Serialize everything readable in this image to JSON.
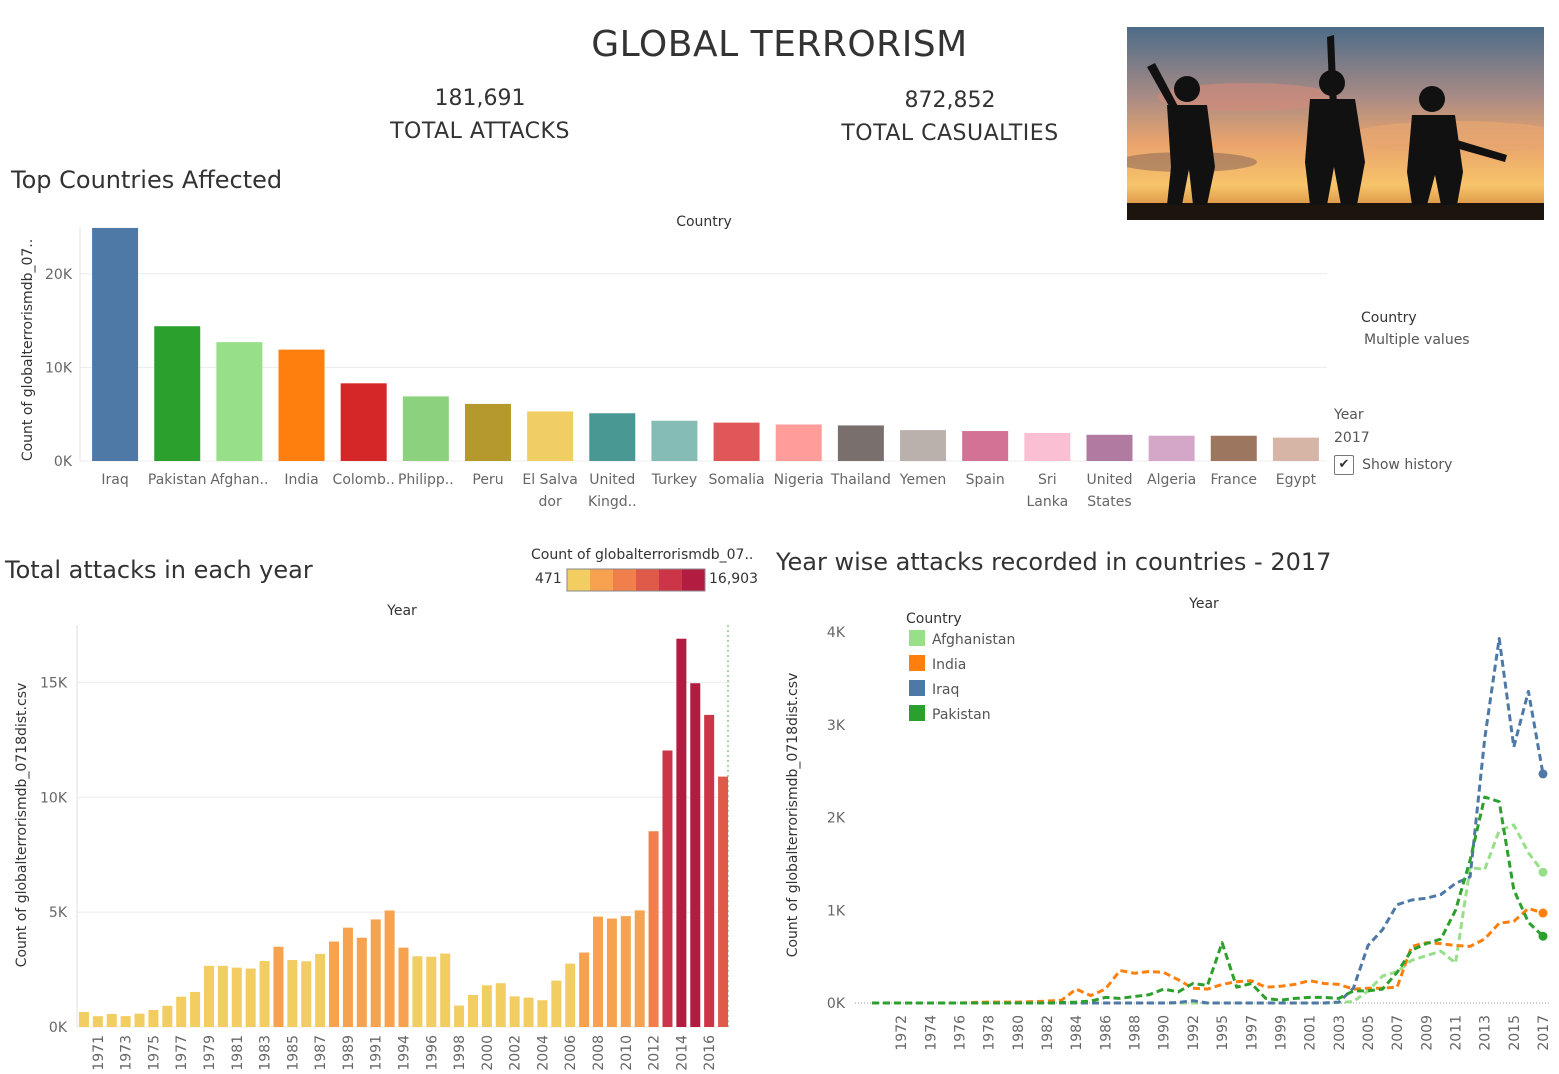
{
  "title": "GLOBAL TERRORISM",
  "kpis": {
    "attacks_value": "181,691",
    "attacks_label": "TOTAL ATTACKS",
    "casualties_value": "872,852",
    "casualties_label": "TOTAL CASUALTIES"
  },
  "filters": {
    "country_label": "Country",
    "country_value": "Multiple values",
    "year_label": "Year",
    "year_value": "2017",
    "show_history_label": "Show history",
    "show_history_checked": "✔"
  },
  "sections": {
    "top_countries": "Top Countries Affected",
    "total_attacks": "Total attacks in each year",
    "year_wise": "Year wise attacks recorded in countries - 2017"
  },
  "color_legend": {
    "title": "Count of globalterrorismdb_07..",
    "min": "471",
    "max": "16,903",
    "colors": [
      "#f2cd61",
      "#f7a24e",
      "#f07f4c",
      "#e05a4a",
      "#cc3547",
      "#b31c41"
    ]
  },
  "chart_data": [
    {
      "type": "bar",
      "title": "",
      "header": "Country",
      "ylabel": "Count of globalterrorismdb_07..",
      "ylim": [
        0,
        25000
      ],
      "yticks": [
        0,
        10000,
        20000
      ],
      "ytick_labels": [
        "0K",
        "10K",
        "20K"
      ],
      "grid": true,
      "categories": [
        {
          "label": [
            "Iraq"
          ],
          "value": 24900,
          "color": "#4e79a7"
        },
        {
          "label": [
            "Pakistan"
          ],
          "value": 14400,
          "color": "#2ca02c"
        },
        {
          "label": [
            "Afghan.."
          ],
          "value": 12700,
          "color": "#98df8a"
        },
        {
          "label": [
            "India"
          ],
          "value": 11900,
          "color": "#ff7f0e"
        },
        {
          "label": [
            "Colomb.."
          ],
          "value": 8300,
          "color": "#d62728"
        },
        {
          "label": [
            "Philipp.."
          ],
          "value": 6900,
          "color": "#8cd17d"
        },
        {
          "label": [
            "Peru"
          ],
          "value": 6100,
          "color": "#b6992d"
        },
        {
          "label": [
            "El Salva",
            "dor"
          ],
          "value": 5300,
          "color": "#f1ce63"
        },
        {
          "label": [
            "United",
            "Kingd.."
          ],
          "value": 5100,
          "color": "#499894"
        },
        {
          "label": [
            "Turkey"
          ],
          "value": 4300,
          "color": "#86bcb6"
        },
        {
          "label": [
            "Somalia"
          ],
          "value": 4100,
          "color": "#e15759"
        },
        {
          "label": [
            "Nigeria"
          ],
          "value": 3900,
          "color": "#ff9d9a"
        },
        {
          "label": [
            "Thailand"
          ],
          "value": 3800,
          "color": "#79706e"
        },
        {
          "label": [
            "Yemen"
          ],
          "value": 3300,
          "color": "#bab0ac"
        },
        {
          "label": [
            "Spain"
          ],
          "value": 3200,
          "color": "#d37295"
        },
        {
          "label": [
            "Sri",
            "Lanka"
          ],
          "value": 3000,
          "color": "#fabfd2"
        },
        {
          "label": [
            "United",
            "States"
          ],
          "value": 2800,
          "color": "#b07aa1"
        },
        {
          "label": [
            "Algeria"
          ],
          "value": 2700,
          "color": "#d4a6c8"
        },
        {
          "label": [
            "France"
          ],
          "value": 2700,
          "color": "#9d7660"
        },
        {
          "label": [
            "Egypt"
          ],
          "value": 2500,
          "color": "#d7b5a6"
        }
      ]
    },
    {
      "type": "bar",
      "title": "",
      "header": "Year",
      "ylabel": "Count of globalterrorismdb_0718dist.csv",
      "ylim": [
        0,
        17500
      ],
      "yticks": [
        0,
        5000,
        10000,
        15000
      ],
      "ytick_labels": [
        "0K",
        "5K",
        "10K",
        "15K"
      ],
      "grid": true,
      "color_scale": {
        "min": 471,
        "max": 16903
      },
      "years": [
        1970,
        1971,
        1972,
        1973,
        1974,
        1975,
        1976,
        1977,
        1978,
        1979,
        1980,
        1981,
        1982,
        1983,
        1984,
        1985,
        1986,
        1987,
        1988,
        1989,
        1990,
        1991,
        1992,
        1994,
        1995,
        1996,
        1997,
        1998,
        1999,
        2000,
        2001,
        2002,
        2003,
        2004,
        2005,
        2006,
        2007,
        2008,
        2009,
        2010,
        2011,
        2012,
        2013,
        2014,
        2015,
        2016,
        2017
      ],
      "x_tick_labels": [
        "1971",
        "1973",
        "1975",
        "1977",
        "1979",
        "1981",
        "1983",
        "1985",
        "1987",
        "1989",
        "1991",
        "1994",
        "1996",
        "1998",
        "2000",
        "2002",
        "2004",
        "2006",
        "2008",
        "2010",
        "2012",
        "2014",
        "2016"
      ],
      "values": [
        651,
        471,
        568,
        473,
        581,
        740,
        923,
        1319,
        1526,
        2662,
        2662,
        2586,
        2544,
        2870,
        3495,
        2915,
        2860,
        3183,
        3721,
        4324,
        3887,
        4683,
        5071,
        3456,
        3081,
        3058,
        3197,
        934,
        1395,
        1814,
        1906,
        1333,
        1278,
        1166,
        2017,
        2758,
        3242,
        4805,
        4721,
        4826,
        5076,
        8522,
        12036,
        16903,
        14965,
        13587,
        10900
      ]
    },
    {
      "type": "line",
      "title": "",
      "header": "Year",
      "ylabel": "Count of globalterrorismdb_0718dist.csv",
      "ylim": [
        0,
        4000
      ],
      "yticks": [
        0,
        1000,
        2000,
        3000,
        4000
      ],
      "ytick_labels": [
        "0K",
        "1K",
        "2K",
        "3K",
        "4K"
      ],
      "legend_title": "Country",
      "legend_position": "top-left",
      "x": [
        1970,
        1971,
        1972,
        1973,
        1974,
        1975,
        1976,
        1977,
        1978,
        1979,
        1980,
        1981,
        1982,
        1983,
        1984,
        1985,
        1986,
        1987,
        1988,
        1989,
        1990,
        1991,
        1992,
        1994,
        1995,
        1996,
        1997,
        1998,
        1999,
        2000,
        2001,
        2002,
        2003,
        2004,
        2005,
        2006,
        2007,
        2008,
        2009,
        2010,
        2011,
        2012,
        2013,
        2014,
        2015,
        2016,
        2017
      ],
      "x_tick_labels": [
        "1972",
        "1974",
        "1976",
        "1978",
        "1980",
        "1982",
        "1984",
        "1986",
        "1988",
        "1990",
        "1992",
        "1995",
        "1997",
        "1999",
        "2001",
        "2003",
        "2005",
        "2007",
        "2009",
        "2011",
        "2013",
        "2015",
        "2017"
      ],
      "series": [
        {
          "name": "Afghanistan",
          "color": "#98df8a",
          "values": [
            0,
            0,
            0,
            0,
            0,
            0,
            0,
            0,
            0,
            0,
            0,
            0,
            0,
            0,
            0,
            0,
            0,
            0,
            0,
            0,
            0,
            0,
            0,
            0,
            0,
            0,
            0,
            0,
            0,
            0,
            0,
            0,
            5,
            15,
            130,
            290,
            340,
            460,
            510,
            560,
            430,
            1460,
            1440,
            1860,
            1920,
            1620,
            1410
          ]
        },
        {
          "name": "India",
          "color": "#ff7f0e",
          "values": [
            0,
            0,
            0,
            0,
            0,
            0,
            0,
            5,
            10,
            10,
            10,
            15,
            20,
            30,
            150,
            80,
            150,
            350,
            320,
            340,
            330,
            250,
            160,
            150,
            200,
            230,
            240,
            170,
            180,
            200,
            240,
            210,
            200,
            150,
            160,
            160,
            170,
            610,
            650,
            640,
            620,
            610,
            690,
            860,
            880,
            1020,
            970
          ]
        },
        {
          "name": "Iraq",
          "color": "#4e79a7",
          "values": [
            0,
            0,
            0,
            0,
            0,
            0,
            0,
            0,
            0,
            0,
            0,
            0,
            0,
            0,
            0,
            0,
            0,
            0,
            0,
            0,
            0,
            5,
            25,
            0,
            0,
            0,
            0,
            0,
            0,
            0,
            0,
            0,
            10,
            160,
            620,
            790,
            1060,
            1110,
            1130,
            1170,
            1290,
            1360,
            2850,
            3930,
            2760,
            3360,
            2470
          ]
        },
        {
          "name": "Pakistan",
          "color": "#2ca02c",
          "values": [
            0,
            0,
            0,
            0,
            0,
            0,
            0,
            0,
            0,
            0,
            0,
            0,
            0,
            5,
            10,
            20,
            60,
            50,
            70,
            90,
            150,
            120,
            210,
            190,
            650,
            170,
            210,
            50,
            30,
            50,
            60,
            60,
            50,
            130,
            130,
            150,
            330,
            570,
            640,
            690,
            1000,
            1540,
            2220,
            2170,
            1220,
            870,
            720
          ]
        }
      ]
    }
  ]
}
